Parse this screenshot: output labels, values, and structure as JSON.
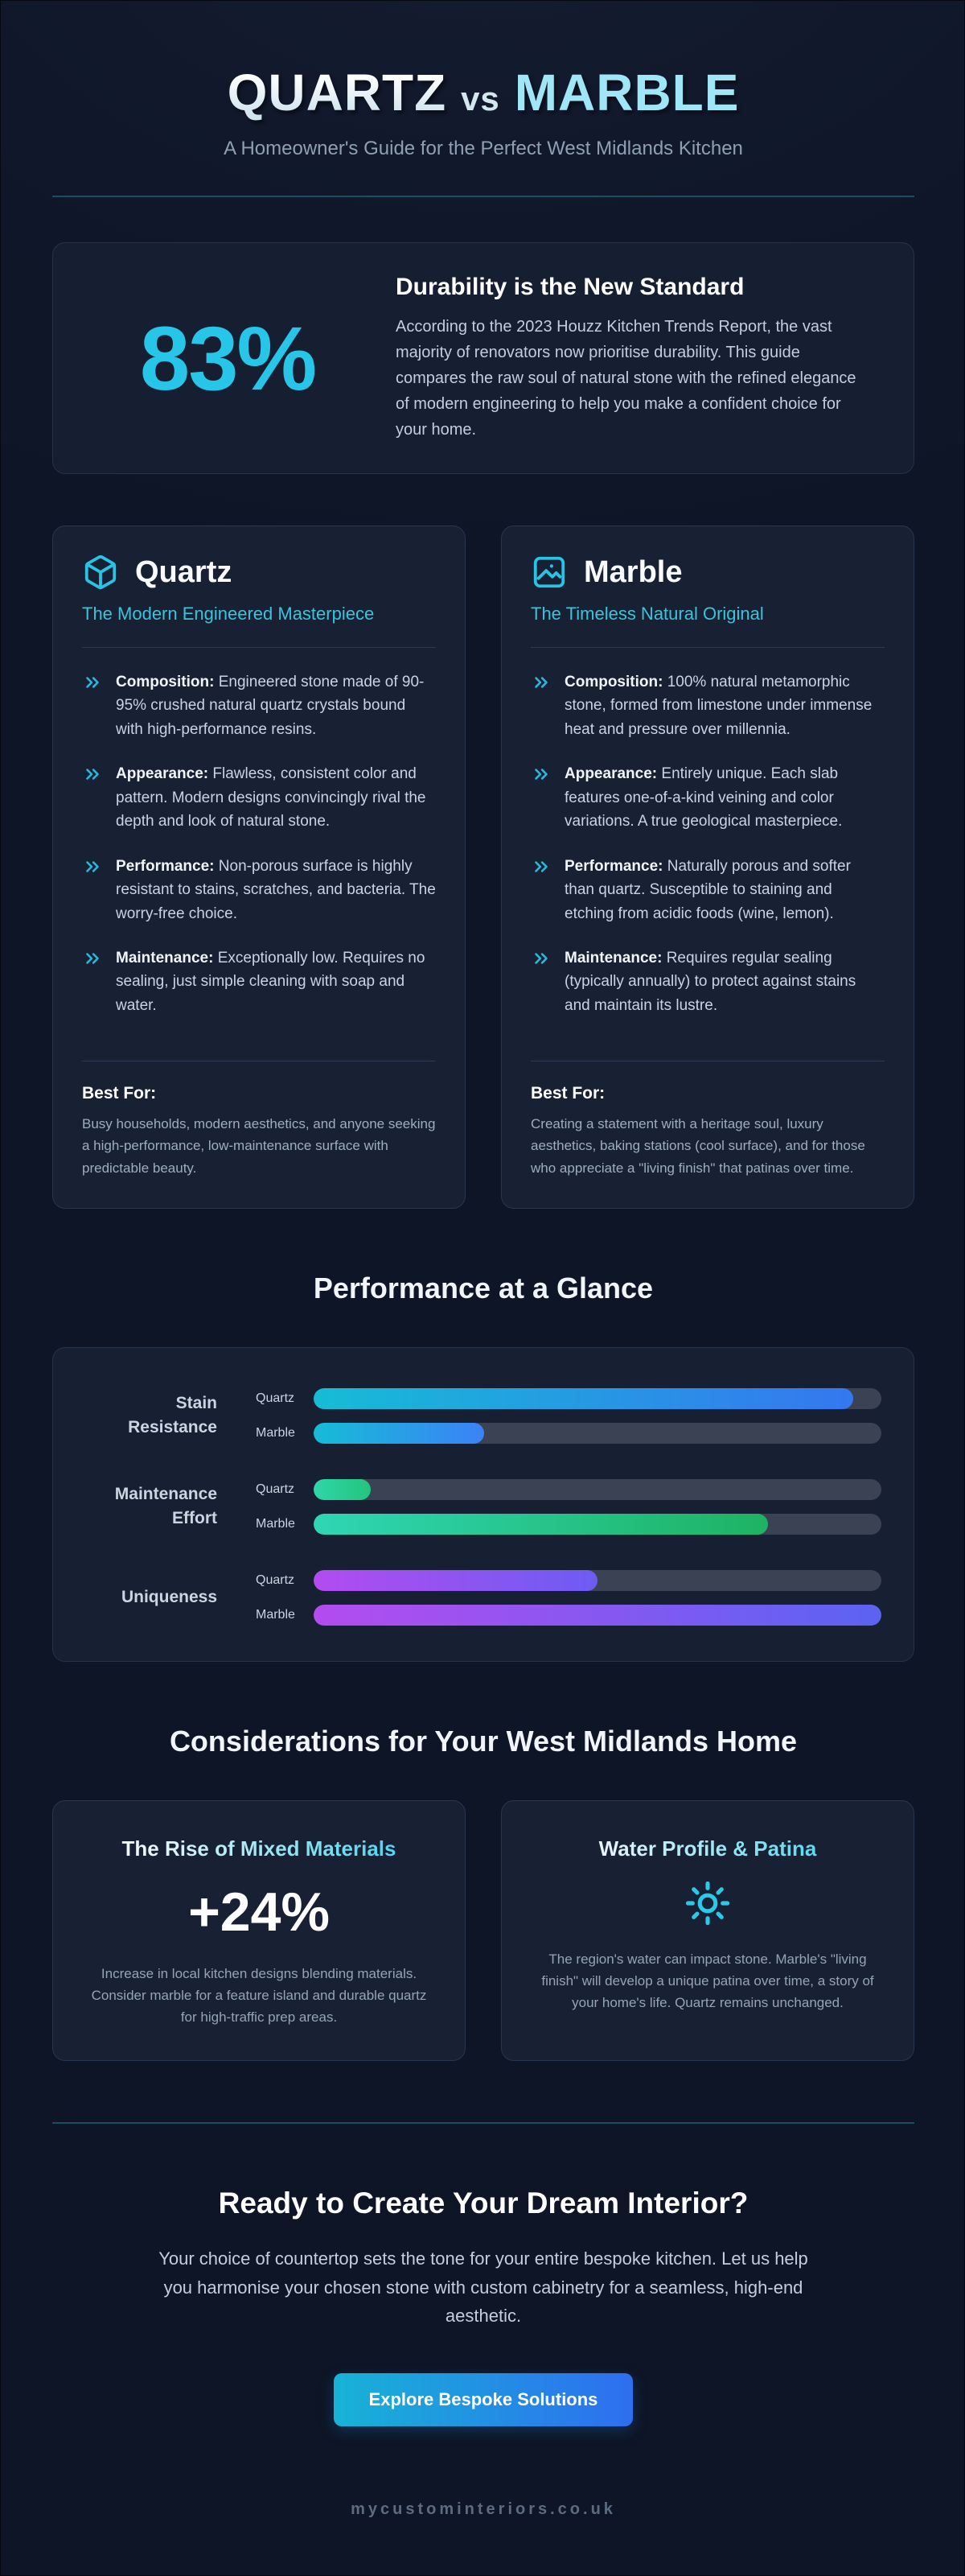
{
  "header": {
    "title_quartz": "QUARTZ",
    "title_vs": "vs",
    "title_marble": "MARBLE",
    "subtitle": "A Homeowner's Guide for the Perfect West Midlands Kitchen"
  },
  "stat": {
    "value": "83%",
    "heading": "Durability is the New Standard",
    "body": "According to the 2023 Houzz Kitchen Trends Report, the vast majority of renovators now prioritise durability. This guide compares the raw soul of natural stone with the refined elegance of modern engineering to help you make a confident choice for your home."
  },
  "materials": [
    {
      "icon": "cube-icon",
      "title": "Quartz",
      "tagline": "The Modern Engineered Masterpiece",
      "features": [
        {
          "label": "Composition:",
          "text": "Engineered stone made of 90-95% crushed natural quartz crystals bound with high-performance resins."
        },
        {
          "label": "Appearance:",
          "text": "Flawless, consistent color and pattern. Modern designs convincingly rival the depth and look of natural stone."
        },
        {
          "label": "Performance:",
          "text": "Non-porous surface is highly resistant to stains, scratches, and bacteria. The worry-free choice."
        },
        {
          "label": "Maintenance:",
          "text": "Exceptionally low. Requires no sealing, just simple cleaning with soap and water."
        }
      ],
      "best_for_label": "Best For:",
      "best_for": "Busy households, modern aesthetics, and anyone seeking a high-performance, low-maintenance surface with predictable beauty."
    },
    {
      "icon": "image-icon",
      "title": "Marble",
      "tagline": "The Timeless Natural Original",
      "features": [
        {
          "label": "Composition:",
          "text": "100% natural metamorphic stone, formed from limestone under immense heat and pressure over millennia."
        },
        {
          "label": "Appearance:",
          "text": "Entirely unique. Each slab features one-of-a-kind veining and color variations. A true geological masterpiece."
        },
        {
          "label": "Performance:",
          "text": "Naturally porous and softer than quartz. Susceptible to staining and etching from acidic foods (wine, lemon)."
        },
        {
          "label": "Maintenance:",
          "text": "Requires regular sealing (typically annually) to protect against stains and maintain its lustre."
        }
      ],
      "best_for_label": "Best For:",
      "best_for": "Creating a statement with a heritage soul, luxury aesthetics, baking stations (cool surface), and for those who appreciate a \"living finish\" that patinas over time."
    }
  ],
  "chart_data": {
    "type": "bar",
    "title": "Performance at a Glance",
    "xlim": [
      0,
      100
    ],
    "grid": false,
    "legend_position": "none",
    "track_color": "#3a4254",
    "groups": [
      {
        "label": "Stain Resistance",
        "bars": [
          {
            "name": "Quartz",
            "value": 95,
            "colors": [
              "#16bcd6",
              "#3577f0"
            ]
          },
          {
            "name": "Marble",
            "value": 30,
            "colors": [
              "#16bcd6",
              "#3b82f6"
            ]
          }
        ]
      },
      {
        "label": "Maintenance Effort",
        "bars": [
          {
            "name": "Quartz",
            "value": 10,
            "colors": [
              "#2fd6a8",
              "#24c47e"
            ]
          },
          {
            "name": "Marble",
            "value": 80,
            "colors": [
              "#2fd6b4",
              "#1eb363"
            ]
          }
        ]
      },
      {
        "label": "Uniqueness",
        "bars": [
          {
            "name": "Quartz",
            "value": 50,
            "colors": [
              "#b34cf0",
              "#6d5cf2"
            ]
          },
          {
            "name": "Marble",
            "value": 100,
            "colors": [
              "#b44cf0",
              "#5b63f2"
            ]
          }
        ]
      }
    ]
  },
  "considerations": {
    "heading": "Considerations for Your West Midlands Home",
    "cards": [
      {
        "title": "The Rise of Mixed Materials",
        "stat": "+24%",
        "body": "Increase in local kitchen designs blending materials. Consider marble for a feature island and durable quartz for high-traffic prep areas."
      },
      {
        "title": "Water Profile & Patina",
        "icon": "sun-icon",
        "body": "The region's water can impact stone. Marble's \"living finish\" will develop a unique patina over time, a story of your home's life. Quartz remains unchanged."
      }
    ]
  },
  "cta": {
    "heading": "Ready to Create Your Dream Interior?",
    "body": "Your choice of countertop sets the tone for your entire bespoke kitchen. Let us help you harmonise your chosen stone with custom cabinetry for a seamless, high-end aesthetic.",
    "button_label": "Explore Bespoke Solutions"
  },
  "footer": {
    "website": "mycustominteriors.co.uk"
  },
  "colors": {
    "accent_cyan": "#29c6e8",
    "page_background": "#10172a",
    "card_background": "#182033",
    "divider_teal": "#14505f",
    "button_gradient": [
      "#17b3d6",
      "#2e6ef0"
    ]
  }
}
